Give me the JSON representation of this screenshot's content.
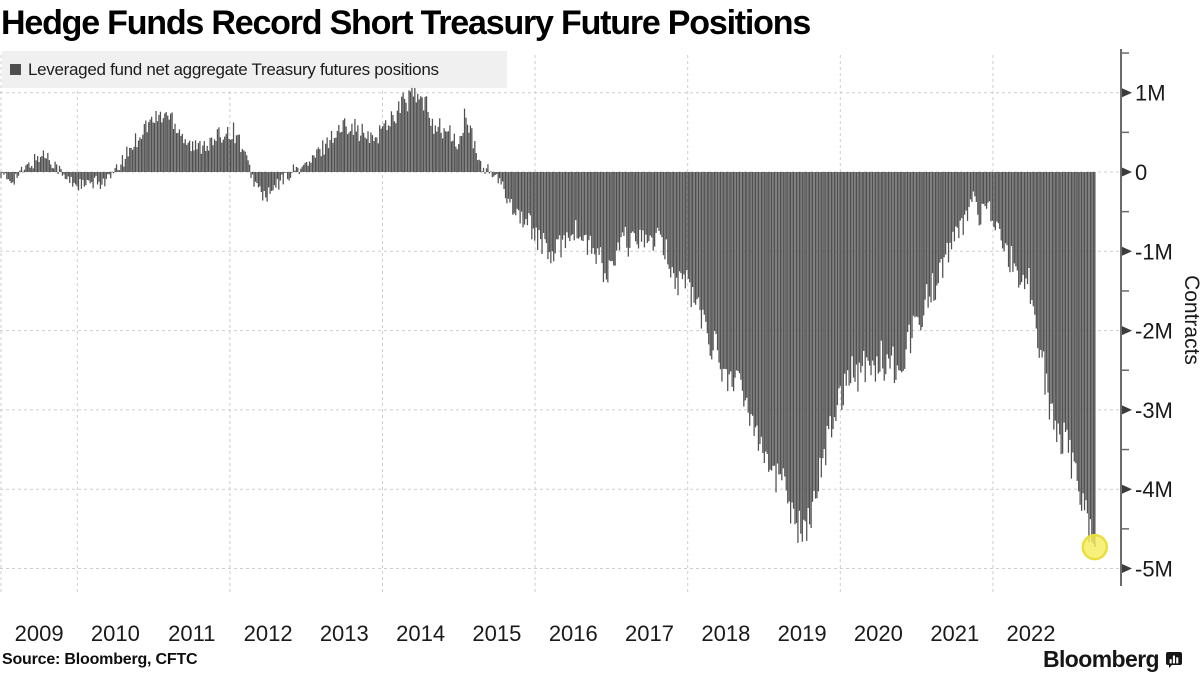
{
  "title": "Hedge Funds Record Short Treasury Future Positions",
  "legend": {
    "swatch_color": "#4f4f4f",
    "label": "Leveraged fund net aggregate Treasury futures positions"
  },
  "axis": {
    "y": {
      "label": "Contracts",
      "ticks": [
        {
          "label": "1M",
          "value": 1
        },
        {
          "label": "0",
          "value": 0
        },
        {
          "label": "-1M",
          "value": -1
        },
        {
          "label": "-2M",
          "value": -2
        },
        {
          "label": "-3M",
          "value": -3
        },
        {
          "label": "-4M",
          "value": -4
        },
        {
          "label": "-5M",
          "value": -5
        }
      ],
      "minor_tick_values": [
        1.5,
        0.5,
        -0.5,
        -1.5,
        -2.5,
        -3.5,
        -4.5
      ]
    },
    "x": {
      "year_labels": [
        "2009",
        "2010",
        "2011",
        "2012",
        "2013",
        "2014",
        "2015",
        "2016",
        "2017",
        "2018",
        "2019",
        "2020",
        "2021",
        "2022"
      ],
      "gridline_years": [
        2009,
        2010,
        2012,
        2014,
        2016,
        2018,
        2020,
        2022
      ]
    }
  },
  "source_line": "Source: Bloomberg, CFTC",
  "brand": {
    "wordmark": "Bloomberg"
  },
  "colors": {
    "bar": "#505050",
    "grid": "#cfcfcf",
    "axis": "#6b6b6b",
    "tick_text": "#1a1a1a",
    "highlight_fill": "#f5ee5e",
    "highlight_stroke": "#e8df3e"
  },
  "chart_data": {
    "type": "bar",
    "title": "Hedge Funds Record Short Treasury Future Positions",
    "series_name": "Leveraged fund net aggregate Treasury futures positions",
    "ylabel": "Contracts",
    "unit": "millions of contracts",
    "ylim": [
      -5.3,
      1.5
    ],
    "x_start": "2009-01",
    "frequency": "monthly",
    "values_millions": [
      -0.05,
      -0.1,
      -0.08,
      -0.02,
      0.05,
      0.12,
      0.2,
      0.22,
      0.15,
      0.05,
      -0.08,
      -0.12,
      -0.15,
      -0.18,
      -0.16,
      -0.14,
      -0.12,
      -0.08,
      0.0,
      0.12,
      0.25,
      0.38,
      0.5,
      0.6,
      0.65,
      0.7,
      0.73,
      0.68,
      0.55,
      0.42,
      0.32,
      0.3,
      0.38,
      0.35,
      0.42,
      0.5,
      0.53,
      0.48,
      0.3,
      0.05,
      -0.15,
      -0.28,
      -0.31,
      -0.22,
      -0.12,
      -0.05,
      0.02,
      0.05,
      0.08,
      0.15,
      0.25,
      0.35,
      0.45,
      0.5,
      0.58,
      0.65,
      0.52,
      0.48,
      0.4,
      0.45,
      0.55,
      0.65,
      0.75,
      0.85,
      0.92,
      0.97,
      0.88,
      0.8,
      0.62,
      0.55,
      0.5,
      0.45,
      0.3,
      0.72,
      0.45,
      0.15,
      0.05,
      0.0,
      -0.1,
      -0.22,
      -0.35,
      -0.5,
      -0.58,
      -0.65,
      -0.78,
      -0.9,
      -1.0,
      -1.1,
      -0.92,
      -0.8,
      -0.72,
      -0.8,
      -0.9,
      -1.0,
      -1.05,
      -1.35,
      -1.2,
      -1.05,
      -0.8,
      -0.95,
      -0.85,
      -0.78,
      -0.95,
      -0.82,
      -0.95,
      -1.05,
      -1.4,
      -1.35,
      -1.4,
      -1.6,
      -1.8,
      -2.0,
      -2.15,
      -2.35,
      -2.65,
      -2.5,
      -2.7,
      -2.95,
      -3.05,
      -3.25,
      -3.45,
      -3.7,
      -3.9,
      -3.8,
      -4.15,
      -4.35,
      -4.6,
      -4.45,
      -4.0,
      -3.7,
      -3.4,
      -3.05,
      -2.8,
      -2.6,
      -2.45,
      -2.55,
      -2.4,
      -2.55,
      -2.3,
      -2.45,
      -2.35,
      -2.5,
      -2.3,
      -2.1,
      -1.85,
      -1.7,
      -1.55,
      -1.4,
      -1.2,
      -1.0,
      -0.85,
      -0.72,
      -0.55,
      -0.25,
      -0.6,
      -0.35,
      -0.6,
      -0.8,
      -1.0,
      -1.12,
      -1.25,
      -1.35,
      -1.45,
      -1.95,
      -2.5,
      -3.0,
      -3.2,
      -3.35,
      -3.55,
      -3.8,
      -4.1,
      -4.45
    ],
    "last_point": {
      "value_millions": -4.73,
      "highlighted": true,
      "marker_color": "#f5ee5e"
    }
  }
}
